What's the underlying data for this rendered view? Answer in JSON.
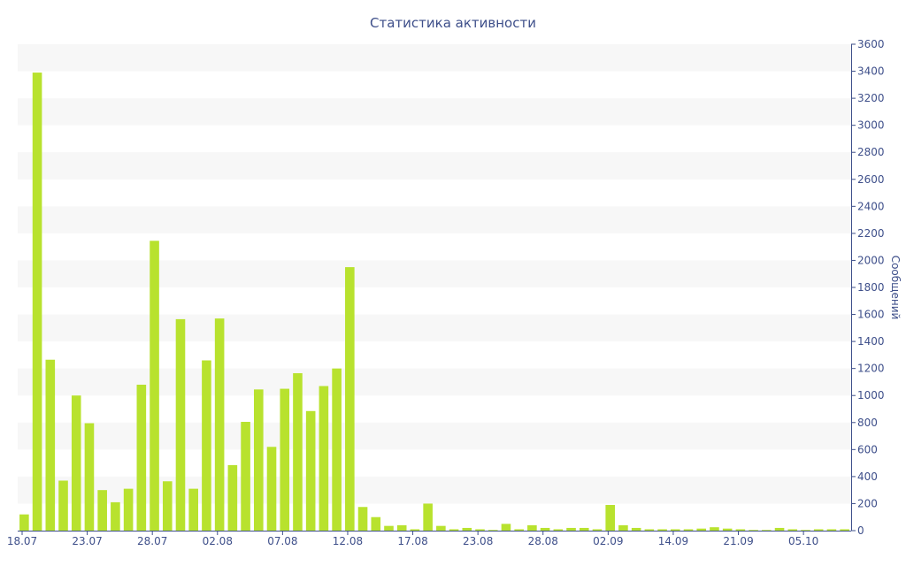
{
  "chart_data": {
    "type": "bar",
    "title": "Статистика активности",
    "xlabel": "",
    "ylabel": "Сообщений",
    "ylim": [
      0,
      3600
    ],
    "ytick_step": 200,
    "x_tick_labels": [
      "18.07",
      "23.07",
      "28.07",
      "02.08",
      "07.08",
      "12.08",
      "17.08",
      "23.08",
      "28.08",
      "02.09",
      "14.09",
      "21.09",
      "05.10"
    ],
    "bar_color": "#b8e22e",
    "values": [
      120,
      3390,
      1265,
      370,
      1000,
      795,
      300,
      210,
      310,
      1080,
      2145,
      365,
      1565,
      310,
      1260,
      1570,
      485,
      805,
      1045,
      620,
      1050,
      1165,
      885,
      1070,
      1200,
      1950,
      175,
      100,
      35,
      40,
      10,
      200,
      35,
      10,
      20,
      10,
      5,
      50,
      10,
      40,
      20,
      10,
      20,
      20,
      10,
      190,
      40,
      20,
      10,
      10,
      10,
      10,
      15,
      25,
      15,
      10,
      5,
      5,
      20,
      10,
      5,
      10,
      10,
      10
    ]
  }
}
